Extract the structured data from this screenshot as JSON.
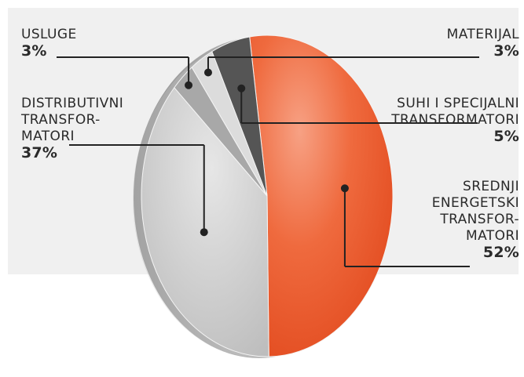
{
  "chart_data": {
    "type": "pie",
    "slices": [
      {
        "label": "SREDNJI ENERGETSKI TRANSFORMATORI",
        "lines": [
          "SREDNJI",
          "ENERGETSKI",
          "TRANSFOR-",
          "MATORI"
        ],
        "value": 52,
        "display": "52%",
        "color": "#ec5a2e"
      },
      {
        "label": "DISTRIBUTIVNI TRANSFORMATORI",
        "lines": [
          "DISTRIBUTIVNI",
          "TRANSFOR-",
          "MATORI"
        ],
        "value": 37,
        "display": "37%",
        "color": "#c9c9c9"
      },
      {
        "label": "USLUGE",
        "lines": [
          "USLUGE"
        ],
        "value": 3,
        "display": "3%",
        "color": "#a8a8a8"
      },
      {
        "label": "MATERIJAL",
        "lines": [
          "MATERIJAL"
        ],
        "value": 3,
        "display": "3%",
        "color": "#dcdcdc"
      },
      {
        "label": "SUHI I SPECIJALNI TRANSFORMATORI",
        "lines": [
          "SUHI I SPECIJALNI",
          "TRANSFORMATORI"
        ],
        "value": 5,
        "display": "5%",
        "color": "#555555"
      }
    ],
    "title": "",
    "legend": "none"
  }
}
